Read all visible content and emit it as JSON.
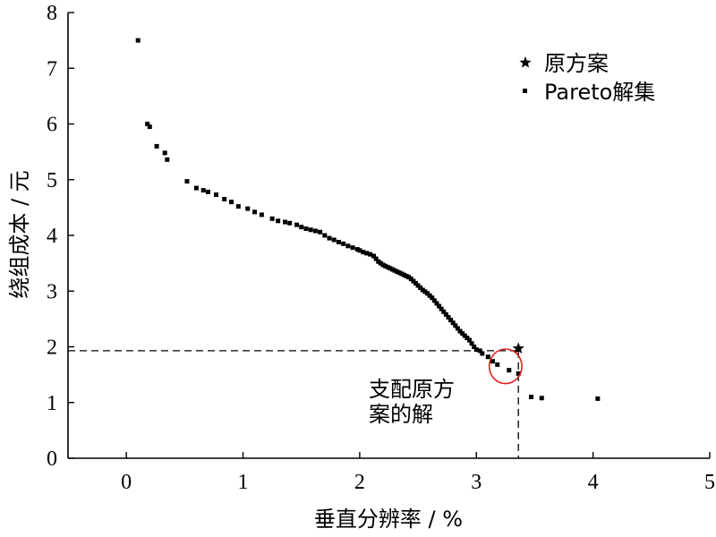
{
  "chart_data": {
    "type": "scatter",
    "title": "",
    "xlabel": "垂直分辨率 / %",
    "ylabel": "绕组成本 / 元",
    "xlim": [
      -0.5,
      5
    ],
    "ylim": [
      0,
      8
    ],
    "xticks": [
      "0",
      "1",
      "2",
      "3",
      "4",
      "5"
    ],
    "yticks": [
      "0",
      "1",
      "2",
      "3",
      "4",
      "5",
      "6",
      "7",
      "8"
    ],
    "grid": false,
    "legend_position": "top-right",
    "series": [
      {
        "name": "原方案",
        "marker": "star",
        "points": [
          [
            3.36,
            1.97
          ]
        ]
      },
      {
        "name": "Pareto解集",
        "marker": "square",
        "points": [
          [
            0.1,
            7.5
          ],
          [
            0.18,
            6.0
          ],
          [
            0.2,
            5.95
          ],
          [
            0.26,
            5.6
          ],
          [
            0.33,
            5.48
          ],
          [
            0.35,
            5.36
          ],
          [
            0.52,
            4.97
          ],
          [
            0.6,
            4.85
          ],
          [
            0.66,
            4.81
          ],
          [
            0.7,
            4.78
          ],
          [
            0.77,
            4.73
          ],
          [
            0.84,
            4.65
          ],
          [
            0.9,
            4.6
          ],
          [
            0.96,
            4.52
          ],
          [
            1.04,
            4.48
          ],
          [
            1.1,
            4.42
          ],
          [
            1.16,
            4.37
          ],
          [
            1.25,
            4.3
          ],
          [
            1.3,
            4.26
          ],
          [
            1.36,
            4.24
          ],
          [
            1.4,
            4.22
          ],
          [
            1.46,
            4.19
          ],
          [
            1.5,
            4.15
          ],
          [
            1.54,
            4.12
          ],
          [
            1.58,
            4.1
          ],
          [
            1.62,
            4.08
          ],
          [
            1.66,
            4.06
          ],
          [
            1.7,
            4.0
          ],
          [
            1.74,
            3.95
          ],
          [
            1.78,
            3.92
          ],
          [
            1.82,
            3.88
          ],
          [
            1.86,
            3.85
          ],
          [
            1.9,
            3.81
          ],
          [
            1.94,
            3.78
          ],
          [
            1.98,
            3.75
          ],
          [
            2.0,
            3.73
          ],
          [
            2.03,
            3.7
          ],
          [
            2.06,
            3.68
          ],
          [
            2.09,
            3.66
          ],
          [
            2.12,
            3.63
          ],
          [
            2.14,
            3.58
          ],
          [
            2.16,
            3.53
          ],
          [
            2.18,
            3.5
          ],
          [
            2.2,
            3.47
          ],
          [
            2.22,
            3.45
          ],
          [
            2.24,
            3.43
          ],
          [
            2.26,
            3.41
          ],
          [
            2.28,
            3.39
          ],
          [
            2.3,
            3.37
          ],
          [
            2.32,
            3.35
          ],
          [
            2.34,
            3.33
          ],
          [
            2.36,
            3.31
          ],
          [
            2.38,
            3.29
          ],
          [
            2.4,
            3.27
          ],
          [
            2.42,
            3.25
          ],
          [
            2.44,
            3.22
          ],
          [
            2.46,
            3.18
          ],
          [
            2.48,
            3.14
          ],
          [
            2.5,
            3.1
          ],
          [
            2.52,
            3.06
          ],
          [
            2.54,
            3.02
          ],
          [
            2.56,
            2.99
          ],
          [
            2.58,
            2.96
          ],
          [
            2.6,
            2.92
          ],
          [
            2.62,
            2.88
          ],
          [
            2.64,
            2.83
          ],
          [
            2.66,
            2.78
          ],
          [
            2.68,
            2.73
          ],
          [
            2.7,
            2.68
          ],
          [
            2.72,
            2.63
          ],
          [
            2.74,
            2.58
          ],
          [
            2.76,
            2.53
          ],
          [
            2.78,
            2.48
          ],
          [
            2.8,
            2.43
          ],
          [
            2.82,
            2.38
          ],
          [
            2.84,
            2.33
          ],
          [
            2.86,
            2.28
          ],
          [
            2.88,
            2.24
          ],
          [
            2.9,
            2.2
          ],
          [
            2.92,
            2.16
          ],
          [
            2.94,
            2.12
          ],
          [
            2.96,
            2.06
          ],
          [
            2.98,
            2.0
          ],
          [
            3.0,
            1.95
          ],
          [
            3.03,
            1.93
          ],
          [
            3.05,
            1.88
          ],
          [
            3.1,
            1.82
          ],
          [
            3.14,
            1.74
          ],
          [
            3.18,
            1.68
          ],
          [
            3.28,
            1.58
          ],
          [
            3.36,
            1.52
          ],
          [
            3.47,
            1.1
          ],
          [
            3.56,
            1.08
          ],
          [
            4.04,
            1.07
          ]
        ]
      }
    ],
    "reference_lines": {
      "horizontal_y": 1.93,
      "vertical_x": 3.36
    },
    "annotations": [
      {
        "lines": [
          "支配原方",
          "案的解"
        ],
        "circle_center": [
          3.25,
          1.65
        ],
        "circle_radius_x": 0.14,
        "circle_radius_y": 0.31,
        "circle_color": "#e02020"
      }
    ]
  }
}
